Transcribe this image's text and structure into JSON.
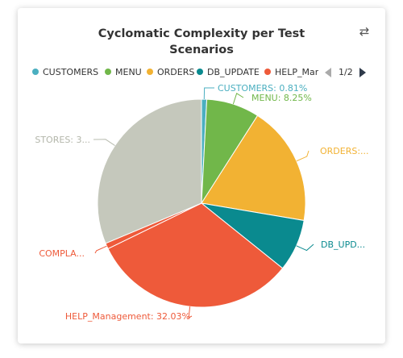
{
  "title_lines": [
    "Cyclomatic Complexity per Test",
    "Scenarios"
  ],
  "toolbar": {
    "switch_icon": "swap-arrows-icon"
  },
  "legend": {
    "items": [
      {
        "label": "CUSTOMERS",
        "color": "#4bafc0"
      },
      {
        "label": "MENU",
        "color": "#71b74a"
      },
      {
        "label": "ORDERS",
        "color": "#f2b233"
      },
      {
        "label": "DB_UPDATE",
        "color": "#0a8a8f"
      },
      {
        "label": "HELP_Mana",
        "color": "#ee5a3a"
      }
    ],
    "page": "1/2",
    "prev_color": "#aaaaaa",
    "next_color": "#2f3a4a"
  },
  "chart_data": {
    "type": "pie",
    "title": "Cyclomatic Complexity per Test Scenarios",
    "slices": [
      {
        "name": "CUSTOMERS",
        "value": 0.81,
        "label": "CUSTOMERS: 0.81%",
        "color": "#4bafc0"
      },
      {
        "name": "MENU",
        "value": 8.25,
        "label": "MENU: 8.25%",
        "color": "#71b74a"
      },
      {
        "name": "ORDERS",
        "value": 18.6,
        "label": "ORDERS:...",
        "color": "#f2b233"
      },
      {
        "name": "DB_UPDATE",
        "value": 8.1,
        "label": "DB_UPD...",
        "color": "#0a8a8f"
      },
      {
        "name": "HELP_Management",
        "value": 32.03,
        "label": "HELP_Management: 32.03%",
        "color": "#ee5a3a"
      },
      {
        "name": "COMPLA...",
        "value": 0.9,
        "label": "COMPLA...",
        "color": "#ee5a3a"
      },
      {
        "name": "STORES",
        "value": 31.31,
        "label": "STORES: 3...",
        "color": "#c5c8bc"
      }
    ]
  }
}
